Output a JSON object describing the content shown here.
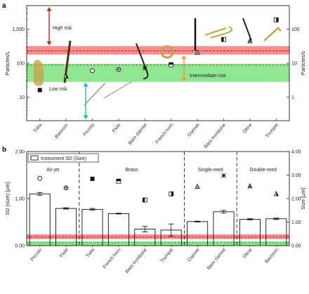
{
  "chart_data": [
    {
      "panel": "a",
      "type": "scatter",
      "ylabel": "Particles/L",
      "y2label": "Particles/s",
      "yscale": "log",
      "ylim": [
        2,
        5000
      ],
      "y2lim": [
        0.2,
        500
      ],
      "y_ticks": [
        "1,000",
        "100",
        "10"
      ],
      "y2_ticks": [
        "100",
        "10",
        "1"
      ],
      "categories": [
        "Tuba",
        "Bassoon",
        "Piccolo",
        "Flute",
        "Bass clarinet",
        "French horn",
        "Clarinet",
        "Bass trombone",
        "Oboe",
        "Trumpet"
      ],
      "points": [
        {
          "instrument": "Tuba",
          "marker": "square-filled",
          "y": 16
        },
        {
          "instrument": "Bassoon",
          "marker": "triangle-half",
          "y": 42
        },
        {
          "instrument": "Piccolo",
          "marker": "circle-open",
          "y": 60
        },
        {
          "instrument": "Flute",
          "marker": "circle-plus",
          "y": 65
        },
        {
          "instrument": "Bass clarinet",
          "marker": "star-x",
          "y": 72
        },
        {
          "instrument": "French horn",
          "marker": "square-top-half",
          "y": 90
        },
        {
          "instrument": "Clarinet",
          "marker": "triangle-lines",
          "y": 210
        },
        {
          "instrument": "Bass trombone",
          "marker": "square-left-half",
          "y": 500
        },
        {
          "instrument": "Oboe",
          "marker": "triangle-stripes",
          "y": 460
        },
        {
          "instrument": "Trumpet",
          "marker": "square-right-half",
          "y": 1900
        }
      ],
      "bands": [
        {
          "name": "high",
          "from": 180,
          "to": 320,
          "color": "#f47a7a",
          "line_y": 230
        },
        {
          "name": "intermediate",
          "from": 28,
          "to": 95,
          "color": "#7be27b",
          "line_y": 88
        }
      ],
      "annotations": {
        "high": "High risk",
        "intermediate": "Intermediate risk",
        "low": "Low risk"
      },
      "arrow_colors": {
        "high": "#d62020",
        "intermediate": "#f39a2a",
        "low": "#20b8c8"
      }
    },
    {
      "panel": "b",
      "type": "bar",
      "ylabel": "SD (size) [μm]",
      "y2label": "Size [μm]",
      "ylim": [
        0,
        2.0
      ],
      "y2lim": [
        0,
        4.0
      ],
      "y_ticks": [
        "0.00",
        "1.00",
        "2.00"
      ],
      "y2_ticks": [
        "0.00",
        "1.00",
        "2.00",
        "3.00",
        "4.00"
      ],
      "legend": "Instrument SD (Size)",
      "legend_position": "top-left",
      "groups": [
        {
          "label": "Air-jet",
          "start": 0,
          "end": 1
        },
        {
          "label": "Brass",
          "start": 2,
          "end": 5
        },
        {
          "label": "Single-reed",
          "start": 6,
          "end": 7
        },
        {
          "label": "Double-reed",
          "start": 8,
          "end": 9
        }
      ],
      "categories": [
        "Piccolo",
        "Flute",
        "Tuba",
        "French horn",
        "Bass trombone",
        "Trumpet",
        "Clarinet",
        "Bass clarinet",
        "Oboe",
        "Bassoon"
      ],
      "values": [
        1.1,
        0.79,
        0.77,
        0.68,
        0.35,
        0.33,
        0.51,
        0.72,
        0.56,
        0.57
      ],
      "errors": [
        0.03,
        0.015,
        0.02,
        0.01,
        0.06,
        0.13,
        0.01,
        0.03,
        0.015,
        0.015
      ],
      "size_markers": [
        {
          "marker": "circle-open",
          "size": 2.86
        },
        {
          "marker": "circle-plus",
          "size": 2.46
        },
        {
          "marker": "square-filled",
          "size": 2.84
        },
        {
          "marker": "square-top-half",
          "size": 2.74
        },
        {
          "marker": "square-left-half",
          "size": 1.94
        },
        {
          "marker": "square-right-half",
          "size": 2.2
        },
        {
          "marker": "triangle-lines",
          "size": 2.52
        },
        {
          "marker": "star-x",
          "size": 2.98
        },
        {
          "marker": "triangle-stripes",
          "size": 2.54
        },
        {
          "marker": "triangle-half",
          "size": 2.21
        }
      ],
      "bands": [
        {
          "from": 0.14,
          "to": 0.24,
          "color": "#f47a7a",
          "line_y": 0.18
        },
        {
          "from": 0,
          "to": 0.09,
          "color": "#7be27b",
          "line_y": 0.06
        }
      ]
    }
  ]
}
